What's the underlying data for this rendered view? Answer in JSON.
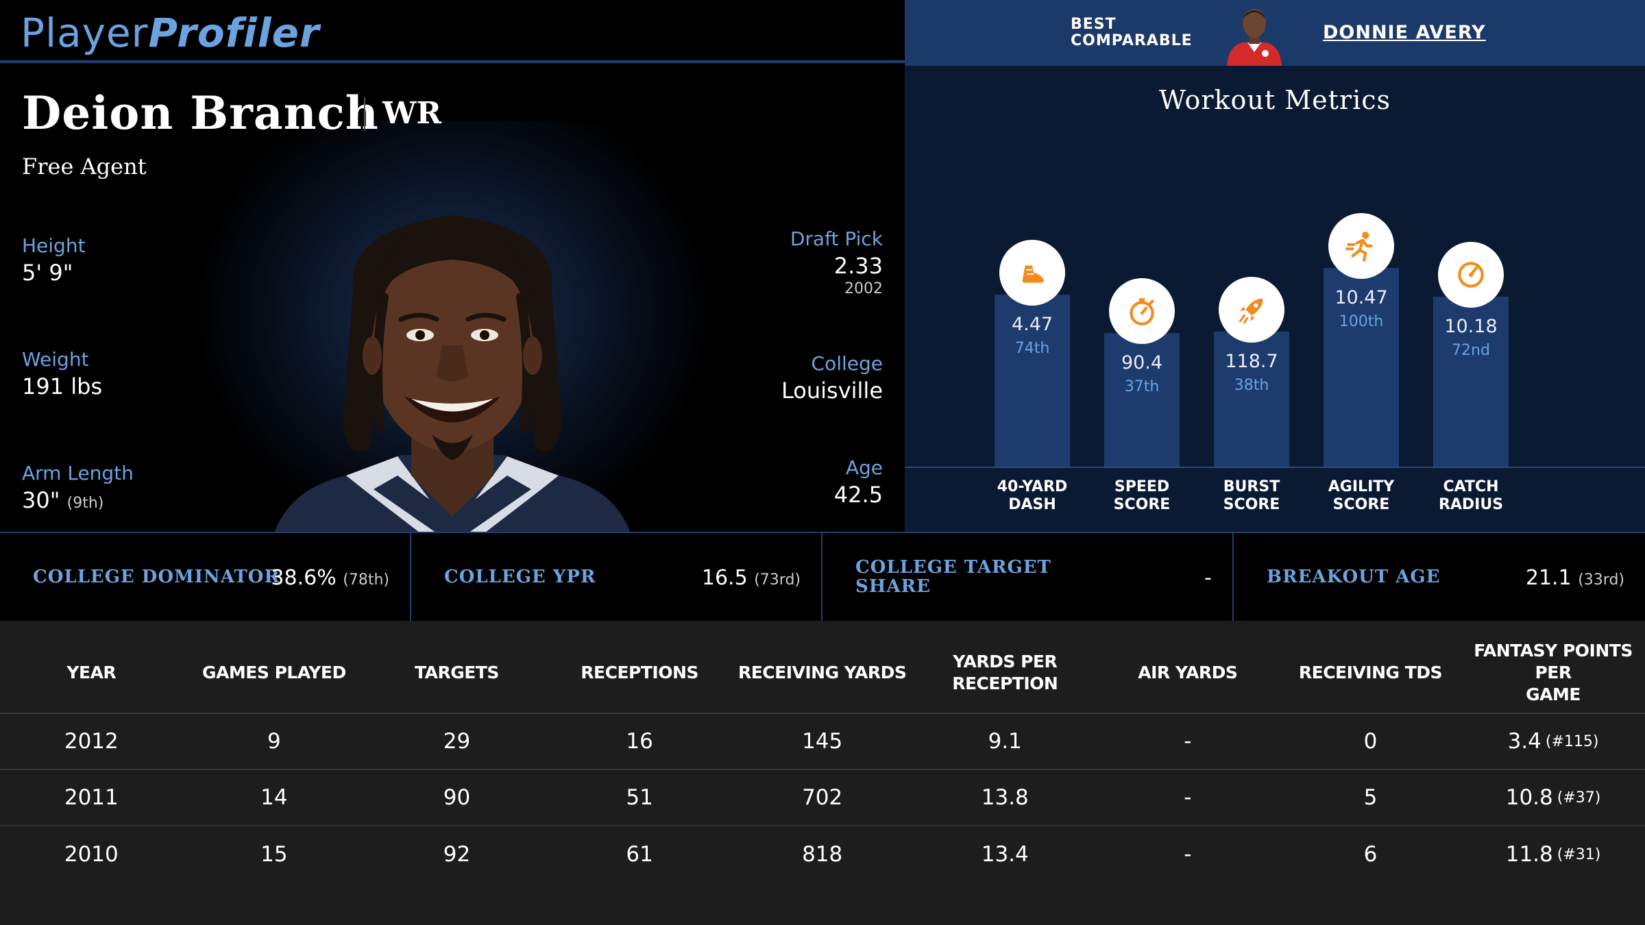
{
  "brand": {
    "part1": "Player",
    "part2": "Profiler"
  },
  "comparable": {
    "label": "BEST COMPARABLE",
    "name": "DONNIE AVERY"
  },
  "player": {
    "name": "Deion Branch",
    "position": "WR",
    "team": "Free Agent",
    "height": {
      "label": "Height",
      "value": "5' 9\""
    },
    "weight": {
      "label": "Weight",
      "value": "191 lbs"
    },
    "arm_length": {
      "label": "Arm Length",
      "value": "30\"",
      "rank": "(9th)"
    },
    "draft_pick": {
      "label": "Draft Pick",
      "value": "2.33",
      "year": "2002"
    },
    "college": {
      "label": "College",
      "value": "Louisville"
    },
    "age": {
      "label": "Age",
      "value": "42.5"
    }
  },
  "workout": {
    "title": "Workout Metrics",
    "metrics": [
      {
        "line1": "40-YARD",
        "line2": "DASH",
        "value": "4.47",
        "percentile": "74th",
        "pct_num": 74,
        "icon": "shoe-icon"
      },
      {
        "line1": "SPEED",
        "line2": "SCORE",
        "value": "90.4",
        "percentile": "37th",
        "pct_num": 37,
        "icon": "stopwatch-icon"
      },
      {
        "line1": "BURST",
        "line2": "SCORE",
        "value": "118.7",
        "percentile": "38th",
        "pct_num": 38,
        "icon": "rocket-icon"
      },
      {
        "line1": "AGILITY",
        "line2": "SCORE",
        "value": "10.47",
        "percentile": "100th",
        "pct_num": 100,
        "icon": "runner-icon"
      },
      {
        "line1": "CATCH",
        "line2": "RADIUS",
        "value": "10.18",
        "percentile": "72nd",
        "pct_num": 72,
        "icon": "gauge-icon"
      }
    ]
  },
  "college_stats": [
    {
      "label1": "COLLEGE DOMINATOR",
      "label2": "",
      "value": "38.6%",
      "rank": "(78th)"
    },
    {
      "label1": "COLLEGE YPR",
      "label2": "",
      "value": "16.5",
      "rank": "(73rd)"
    },
    {
      "label1": "COLLEGE TARGET",
      "label2": "SHARE",
      "value": "-",
      "rank": ""
    },
    {
      "label1": "BREAKOUT AGE",
      "label2": "",
      "value": "21.1",
      "rank": "(33rd)"
    }
  ],
  "table": {
    "headers": [
      {
        "line1": "YEAR",
        "line2": ""
      },
      {
        "line1": "GAMES PLAYED",
        "line2": ""
      },
      {
        "line1": "TARGETS",
        "line2": ""
      },
      {
        "line1": "RECEPTIONS",
        "line2": ""
      },
      {
        "line1": "RECEIVING YARDS",
        "line2": ""
      },
      {
        "line1": "YARDS PER RECEPTION",
        "line2": ""
      },
      {
        "line1": "AIR YARDS",
        "line2": ""
      },
      {
        "line1": "RECEIVING TDS",
        "line2": ""
      },
      {
        "line1": "FANTASY POINTS PER",
        "line2": "GAME"
      }
    ],
    "rows": [
      {
        "year": "2012",
        "games": "9",
        "targets": "29",
        "receptions": "16",
        "rec_yards": "145",
        "ypr": "9.1",
        "air_yards": "-",
        "tds": "0",
        "fppg": "3.4",
        "fppg_rank": "(#115)"
      },
      {
        "year": "2011",
        "games": "14",
        "targets": "90",
        "receptions": "51",
        "rec_yards": "702",
        "ypr": "13.8",
        "air_yards": "-",
        "tds": "5",
        "fppg": "10.8",
        "fppg_rank": "(#37)"
      },
      {
        "year": "2010",
        "games": "15",
        "targets": "92",
        "receptions": "61",
        "rec_yards": "818",
        "ypr": "13.4",
        "air_yards": "-",
        "tds": "6",
        "fppg": "11.8",
        "fppg_rank": "(#31)"
      }
    ]
  }
}
